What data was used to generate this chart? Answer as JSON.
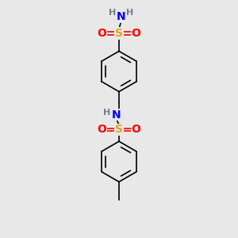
{
  "background_color": "#e8e8e8",
  "atom_colors": {
    "C": "#000000",
    "H": "#708090",
    "N": "#0000FF",
    "O": "#FF0000",
    "S": "#DAA520"
  },
  "bond_color": "#000000",
  "bond_width": 1.2,
  "figsize": [
    3.0,
    3.0
  ],
  "dpi": 100,
  "xlim": [
    0,
    6
  ],
  "ylim": [
    0,
    10
  ]
}
